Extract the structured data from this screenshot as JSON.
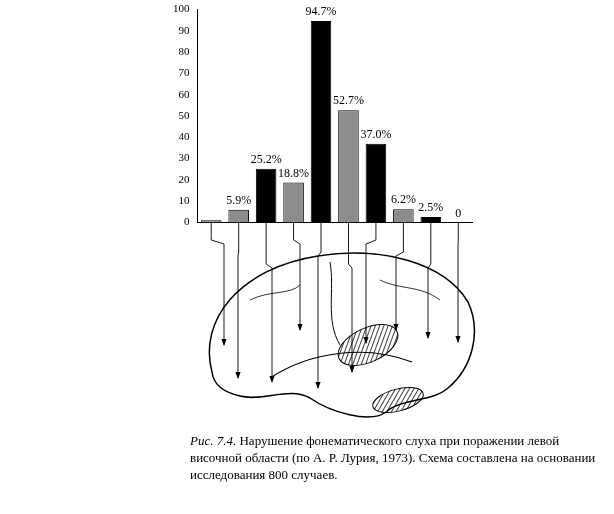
{
  "chart_data": {
    "type": "bar",
    "categories": [
      null,
      null,
      null,
      null,
      null,
      null,
      null,
      null,
      null,
      null
    ],
    "values": [
      1,
      5.9,
      25.2,
      18.8,
      94.7,
      52.7,
      37.0,
      6.2,
      2.5,
      0
    ],
    "value_labels": [
      null,
      "5.9%",
      "25.2%",
      "18.8%",
      "94.7%",
      "52.7%",
      "37.0%",
      "6.2%",
      "2.5%",
      "0"
    ],
    "colors": [
      "#8c8c8c",
      "#8c8c8c",
      "#000000",
      "#8c8c8c",
      "#000000",
      "#8c8c8c",
      "#000000",
      "#8c8c8c",
      "#000000",
      "#8c8c8c"
    ],
    "ylim": [
      0,
      100
    ],
    "yticks": [
      0,
      10,
      20,
      30,
      40,
      50,
      60,
      70,
      80,
      90,
      100
    ],
    "grid": false,
    "data_labels": true,
    "tick_labels": "y"
  },
  "caption": {
    "label": "Рис. 7.4.",
    "text": "Нарушение фонематического слуха при поражении левой височной области (по А. Р. Лурия, 1973). Схема составлена на основании исследования 800 случаев."
  }
}
